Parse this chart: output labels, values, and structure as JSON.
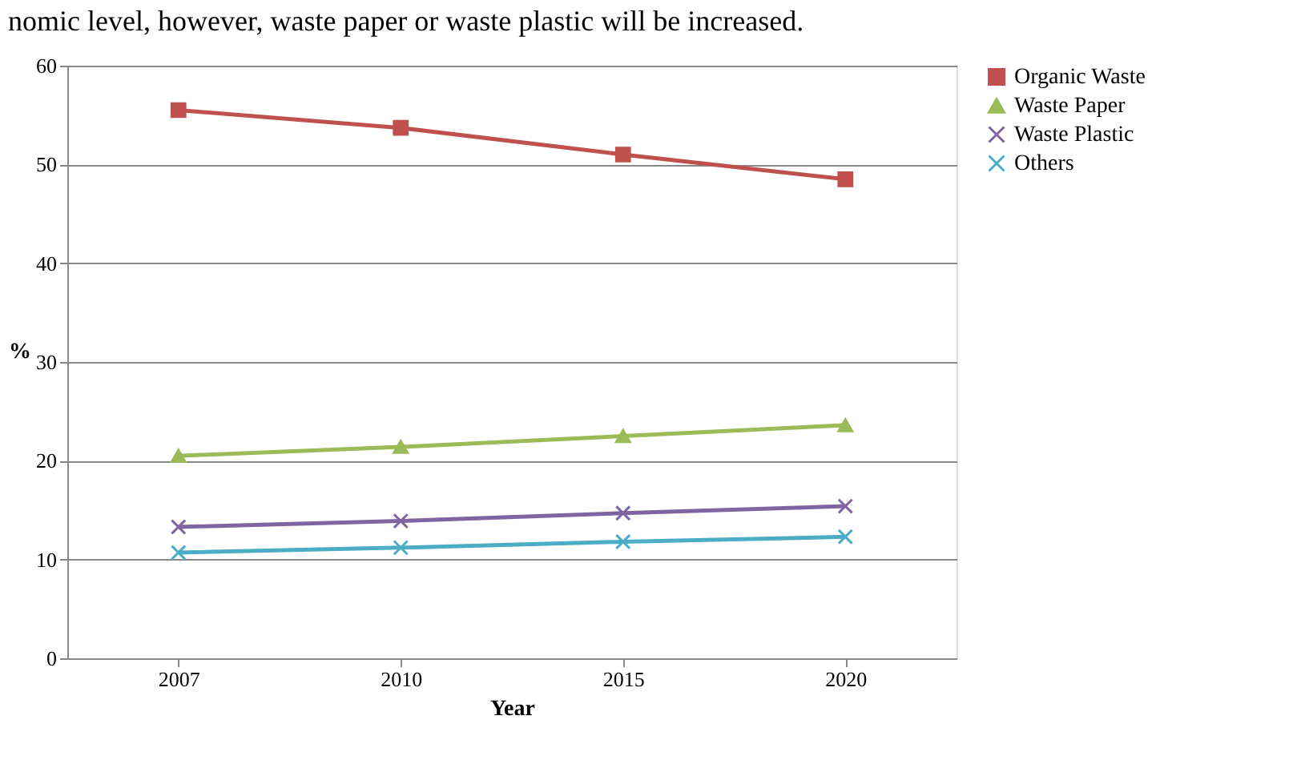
{
  "chart_data": {
    "type": "line",
    "annotations": [
      "nomic level, however, waste paper or waste plastic will be increased."
    ],
    "xlabel": "Year",
    "ylabel": "%",
    "categories": [
      "2007",
      "2010",
      "2015",
      "2020"
    ],
    "series": [
      {
        "name": "Organic Waste",
        "color": "#c0504d",
        "marker": "square",
        "values": [
          55.5,
          53.7,
          51.0,
          48.5
        ]
      },
      {
        "name": "Waste Paper",
        "color": "#9bbb59",
        "marker": "triangle",
        "values": [
          20.5,
          21.4,
          22.5,
          23.6
        ]
      },
      {
        "name": "Waste Plastic",
        "color": "#8064a2",
        "marker": "cross",
        "values": [
          13.3,
          13.9,
          14.7,
          15.4
        ]
      },
      {
        "name": "Others",
        "color": "#4bacc6",
        "marker": "cross",
        "values": [
          10.7,
          11.2,
          11.8,
          12.3
        ]
      }
    ],
    "ylim": [
      0,
      60
    ],
    "yticks": [
      0,
      10,
      20,
      30,
      40,
      50,
      60
    ],
    "grid": "y",
    "legend": "right"
  }
}
